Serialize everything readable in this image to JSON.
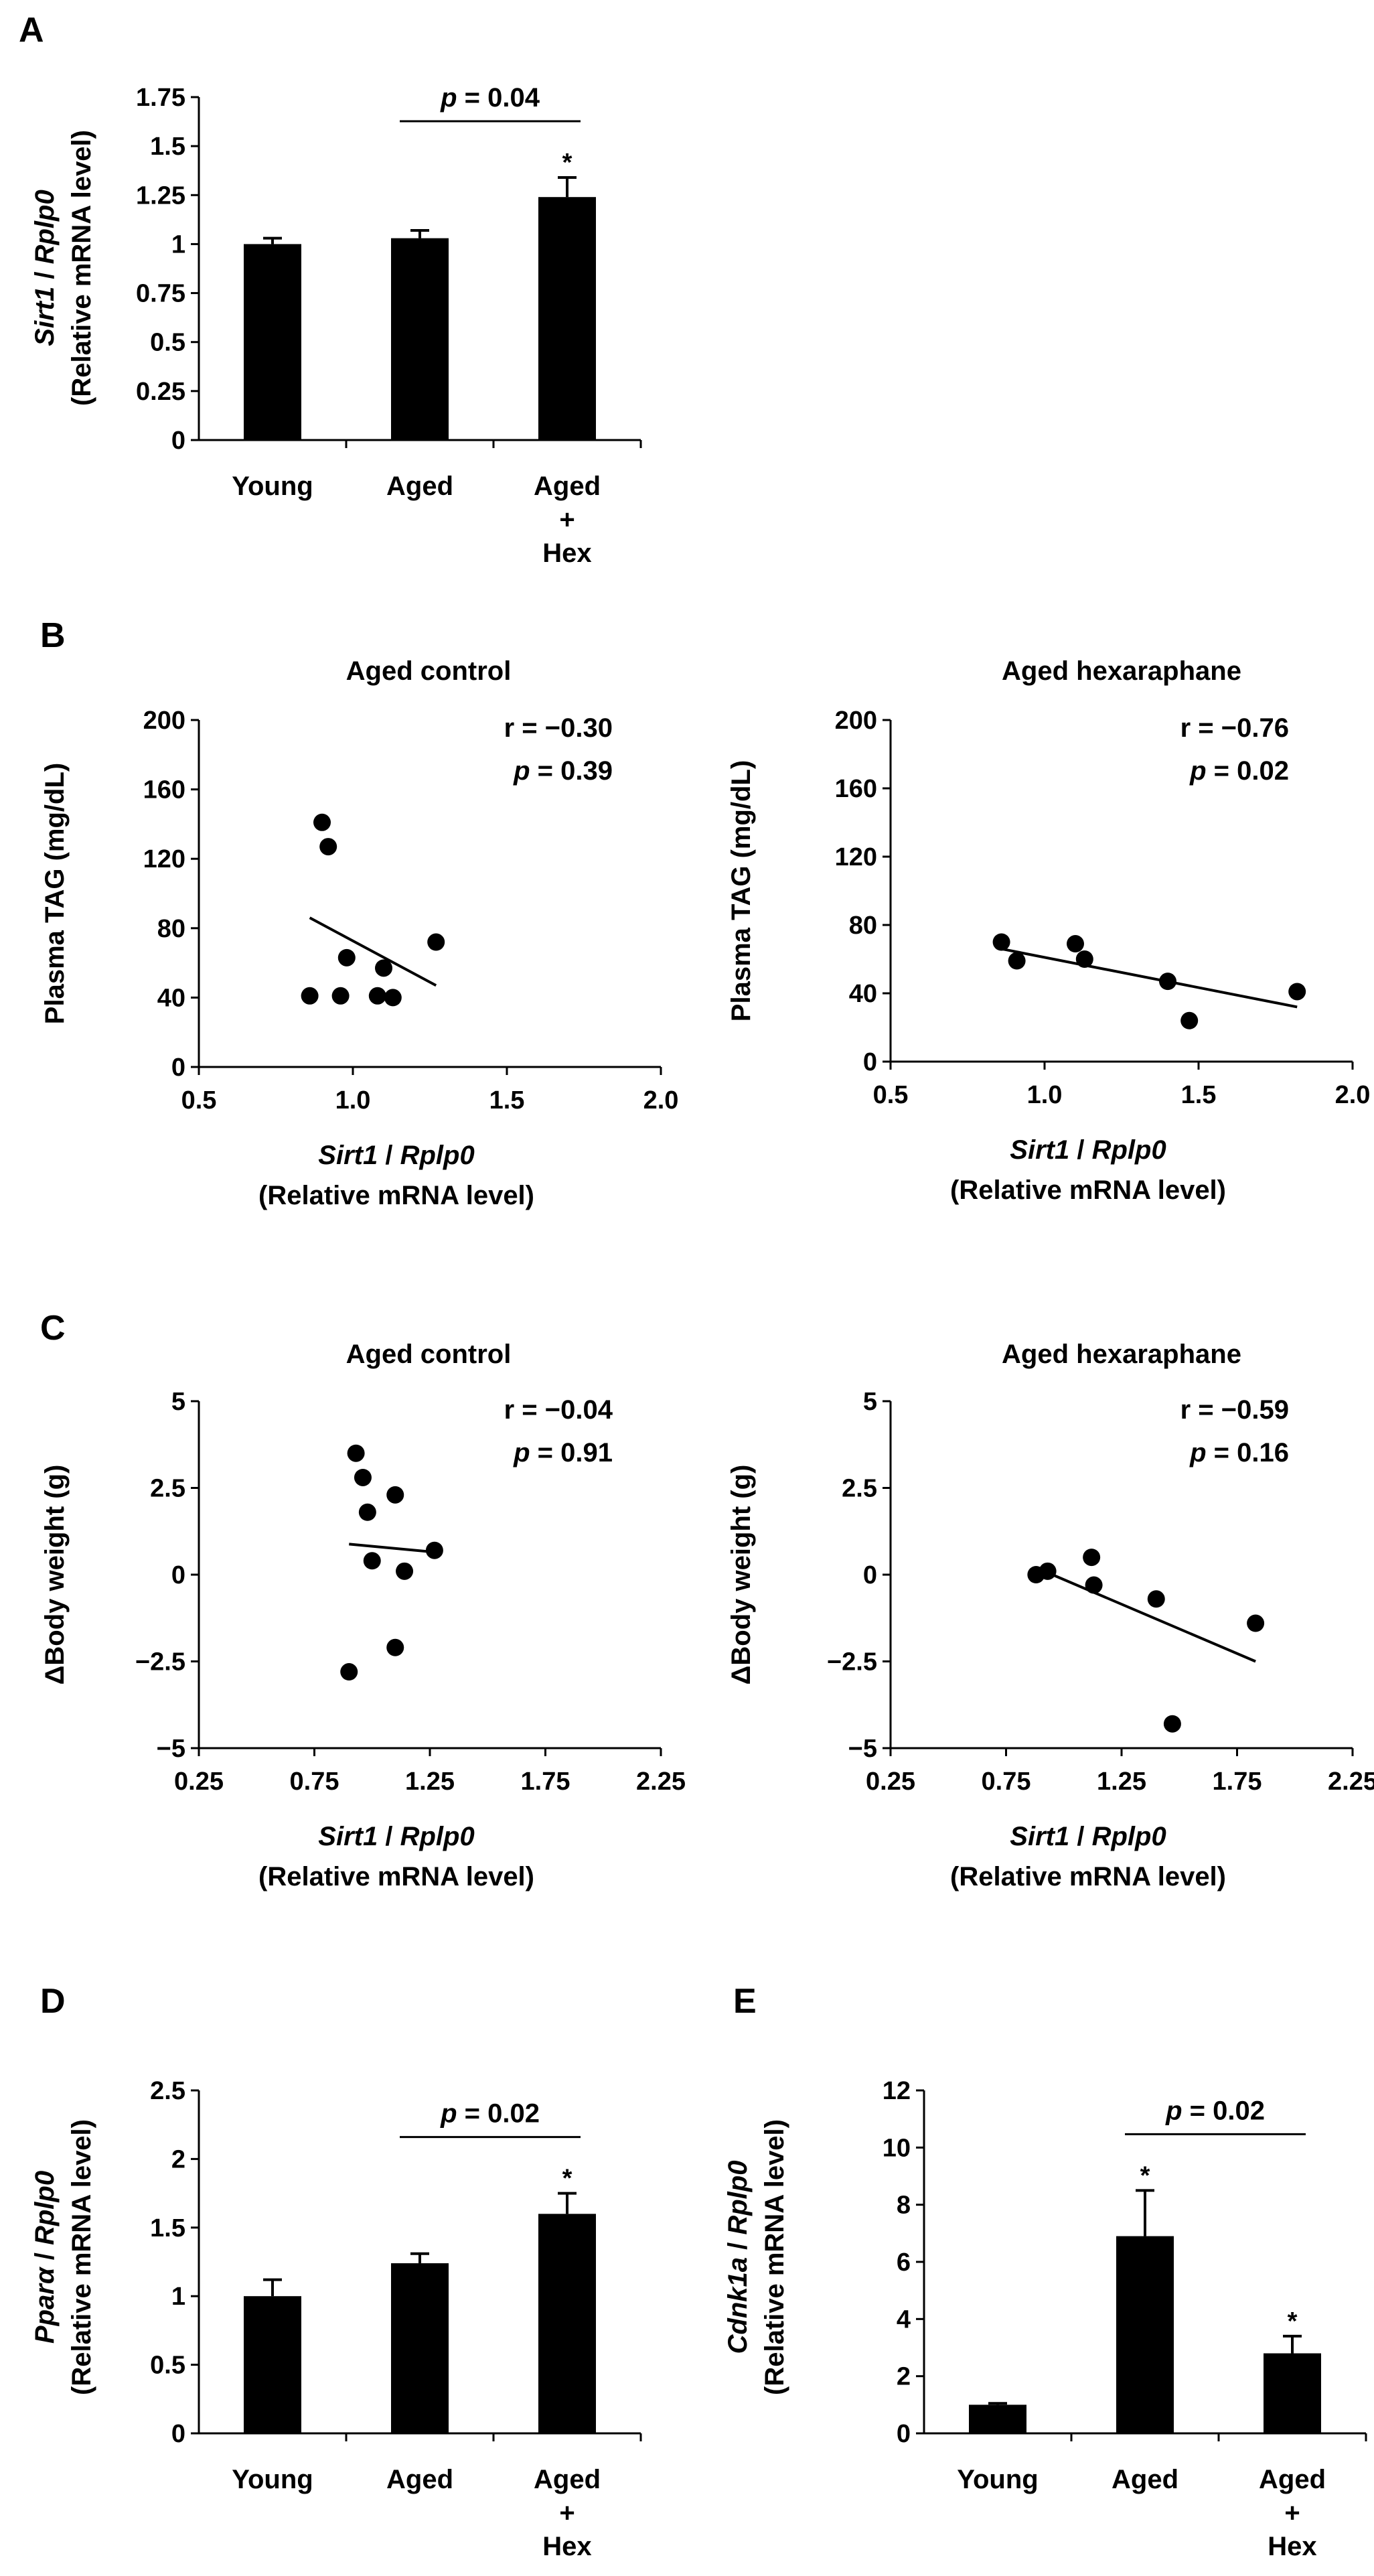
{
  "panels": {
    "A": "A",
    "B": "B",
    "C": "C",
    "D": "D",
    "E": "E"
  },
  "chart_data": [
    {
      "id": "A",
      "type": "bar",
      "categories": [
        [
          "Young"
        ],
        [
          "Aged"
        ],
        [
          "Aged",
          "+",
          "Hex"
        ]
      ],
      "values": [
        1.0,
        1.03,
        1.24
      ],
      "errors": [
        0.03,
        0.04,
        0.1
      ],
      "significance": [
        "",
        "",
        "*"
      ],
      "ylim": [
        0,
        1.75
      ],
      "yticks": [
        0,
        0.25,
        0.5,
        0.75,
        1,
        1.25,
        1.5,
        1.75
      ],
      "ytick_labels": [
        "0",
        "0.25",
        "0.5",
        "0.75",
        "1",
        "1.25",
        "1.5",
        "1.75"
      ],
      "ylabel_gene": "Sirt1 / Rplp0",
      "ylabel_unit": "(Relative mRNA level)",
      "comparison": {
        "from": 1,
        "to": 2,
        "p_symbol": "p",
        "p_text": " = 0.04"
      }
    },
    {
      "id": "B-left",
      "type": "scatter",
      "title": "Aged control",
      "x": [
        0.86,
        0.9,
        0.92,
        0.96,
        0.98,
        1.08,
        1.1,
        1.13,
        1.27
      ],
      "y": [
        41,
        141,
        127,
        41,
        63,
        41,
        57,
        40,
        72
      ],
      "fit": {
        "x": [
          0.86,
          1.27
        ],
        "y": [
          86,
          47
        ]
      },
      "xlim": [
        0.5,
        2.0
      ],
      "ylim": [
        0,
        200
      ],
      "xticks": [
        0.5,
        1.0,
        1.5,
        2.0
      ],
      "xtick_labels": [
        "0.5",
        "1.0",
        "1.5",
        "2.0"
      ],
      "yticks": [
        0,
        40,
        80,
        120,
        160,
        200
      ],
      "ytick_labels": [
        "0",
        "40",
        "80",
        "120",
        "160",
        "200"
      ],
      "ylabel": "Plasma TAG (mg/dL)",
      "xlabel_gene": "Sirt1 / Rplp0",
      "xlabel_unit": "(Relative mRNA level)",
      "r_text": "r = −0.30",
      "p_symbol": "p",
      "p_text": " = 0.39"
    },
    {
      "id": "B-right",
      "type": "scatter",
      "title": "Aged hexaraphane",
      "x": [
        0.86,
        0.91,
        1.1,
        1.13,
        1.4,
        1.47,
        1.82
      ],
      "y": [
        70,
        59,
        69,
        60,
        47,
        24,
        41
      ],
      "fit": {
        "x": [
          0.86,
          1.82
        ],
        "y": [
          66,
          32
        ]
      },
      "xlim": [
        0.5,
        2.0
      ],
      "ylim": [
        0,
        200
      ],
      "xticks": [
        0.5,
        1.0,
        1.5,
        2.0
      ],
      "xtick_labels": [
        "0.5",
        "1.0",
        "1.5",
        "2.0"
      ],
      "yticks": [
        0,
        40,
        80,
        120,
        160,
        200
      ],
      "ytick_labels": [
        "0",
        "40",
        "80",
        "120",
        "160",
        "200"
      ],
      "ylabel": "Plasma TAG (mg/dL)",
      "xlabel_gene": "Sirt1 / Rplp0",
      "xlabel_unit": "(Relative mRNA level)",
      "r_text": "r = −0.76",
      "p_symbol": "p",
      "p_text": " = 0.02"
    },
    {
      "id": "C-left",
      "type": "scatter",
      "title": "Aged control",
      "x": [
        0.9,
        0.93,
        0.96,
        0.98,
        1.0,
        1.1,
        1.1,
        1.14,
        1.27
      ],
      "y": [
        -2.8,
        3.5,
        2.8,
        1.8,
        0.4,
        2.3,
        -2.1,
        0.1,
        0.7
      ],
      "fit": {
        "x": [
          0.9,
          1.27
        ],
        "y": [
          0.88,
          0.65
        ]
      },
      "xlim": [
        0.25,
        2.25
      ],
      "ylim": [
        -5,
        5
      ],
      "xticks": [
        0.25,
        0.75,
        1.25,
        1.75,
        2.25
      ],
      "xtick_labels": [
        "0.25",
        "0.75",
        "1.25",
        "1.75",
        "2.25"
      ],
      "yticks": [
        -5,
        -2.5,
        0,
        2.5,
        5
      ],
      "ytick_labels": [
        "−5",
        "−2.5",
        "0",
        "2.5",
        "5"
      ],
      "ylabel": "ΔBody weight (g)",
      "xlabel_gene": "Sirt1 / Rplp0",
      "xlabel_unit": "(Relative mRNA level)",
      "r_text": "r = −0.04",
      "p_symbol": "p",
      "p_text": " = 0.91"
    },
    {
      "id": "C-right",
      "type": "scatter",
      "title": "Aged hexaraphane",
      "x": [
        0.88,
        0.93,
        1.12,
        1.13,
        1.4,
        1.47,
        1.83
      ],
      "y": [
        0.0,
        0.1,
        0.5,
        -0.3,
        -0.7,
        -4.3,
        -1.4
      ],
      "fit": {
        "x": [
          0.88,
          1.83
        ],
        "y": [
          0.2,
          -2.5
        ]
      },
      "xlim": [
        0.25,
        2.25
      ],
      "ylim": [
        -5,
        5
      ],
      "xticks": [
        0.25,
        0.75,
        1.25,
        1.75,
        2.25
      ],
      "xtick_labels": [
        "0.25",
        "0.75",
        "1.25",
        "1.75",
        "2.25"
      ],
      "yticks": [
        -5,
        -2.5,
        0,
        2.5,
        5
      ],
      "ytick_labels": [
        "−5",
        "−2.5",
        "0",
        "2.5",
        "5"
      ],
      "ylabel": "ΔBody weight (g)",
      "xlabel_gene": "Sirt1 / Rplp0",
      "xlabel_unit": "(Relative mRNA level)",
      "r_text": "r = −0.59",
      "p_symbol": "p",
      "p_text": " = 0.16"
    },
    {
      "id": "D",
      "type": "bar",
      "categories": [
        [
          "Young"
        ],
        [
          "Aged"
        ],
        [
          "Aged",
          "+",
          "Hex"
        ]
      ],
      "values": [
        1.0,
        1.24,
        1.6
      ],
      "errors": [
        0.12,
        0.07,
        0.15
      ],
      "significance": [
        "",
        "",
        "*"
      ],
      "ylim": [
        0,
        2.5
      ],
      "yticks": [
        0,
        0.5,
        1,
        1.5,
        2,
        2.5
      ],
      "ytick_labels": [
        "0",
        "0.5",
        "1",
        "1.5",
        "2",
        "2.5"
      ],
      "ylabel_gene": "Pparα / Rplp0",
      "ylabel_unit": "(Relative mRNA level)",
      "comparison": {
        "from": 1,
        "to": 2,
        "p_symbol": "p",
        "p_text": " = 0.02"
      }
    },
    {
      "id": "E",
      "type": "bar",
      "categories": [
        [
          "Young"
        ],
        [
          "Aged"
        ],
        [
          "Aged",
          "+",
          "Hex"
        ]
      ],
      "values": [
        1.0,
        6.9,
        2.8
      ],
      "errors": [
        0.05,
        1.6,
        0.6
      ],
      "significance": [
        "",
        "*",
        "*"
      ],
      "ylim": [
        0,
        12
      ],
      "yticks": [
        0,
        2,
        4,
        6,
        8,
        10,
        12
      ],
      "ytick_labels": [
        "0",
        "2",
        "4",
        "6",
        "8",
        "10",
        "12"
      ],
      "ylabel_gene": "Cdnk1a / Rplp0",
      "ylabel_unit": "(Relative mRNA level)",
      "comparison": {
        "from": 1,
        "to": 2,
        "p_symbol": "p",
        "p_text": " = 0.02"
      }
    }
  ]
}
